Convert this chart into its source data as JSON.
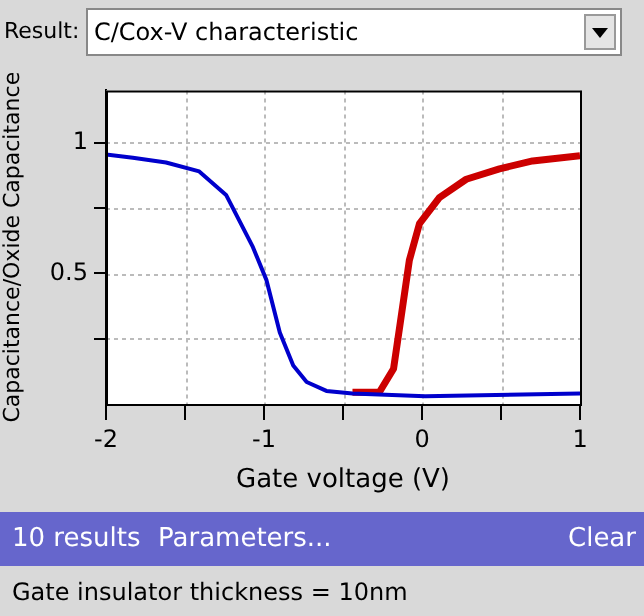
{
  "chart_data": {
    "type": "line",
    "title": "C/Cox-V characteristic",
    "xlabel": "Gate voltage (V)",
    "ylabel": "Capacitance/Oxide Capacitance",
    "annotations": [
      "Result:",
      "10 results",
      "Parameters...",
      "Clear",
      "Gate insulator thickness = 10nm"
    ],
    "series": [
      {
        "color": "#cc0000",
        "x": [
          -0.44,
          -0.27,
          -0.18,
          -0.14,
          -0.08,
          -0.016,
          0.11,
          0.28,
          0.49,
          0.7,
          1
        ],
        "values": [
          0.045,
          0.045,
          0.135,
          0.3,
          0.55,
          0.69,
          0.79,
          0.86,
          0.9,
          0.93,
          0.95
        ]
      },
      {
        "color": "#0000cc",
        "x": [
          -2,
          -1.83,
          -1.62,
          -1.41,
          -1.24,
          -1.07,
          -0.985,
          -0.9,
          -0.815,
          -0.73,
          -0.605,
          -0.44,
          0.02,
          1
        ],
        "values": [
          0.955,
          0.942,
          0.924,
          0.89,
          0.8,
          0.6,
          0.475,
          0.274,
          0.147,
          0.084,
          0.05,
          0.04,
          0.03,
          0.04
        ]
      }
    ],
    "xlim": [
      -2,
      1
    ],
    "xticks": [
      -2,
      {
        "value": -1.5,
        "label": null
      },
      -1,
      {
        "value": -0.5,
        "label": null
      },
      0,
      {
        "value": 0.5,
        "label": null
      },
      1
    ],
    "ylim": [
      0,
      1.2
    ],
    "yticks": [
      {
        "value": 0.25,
        "label": null
      },
      0.5,
      {
        "value": 0.75,
        "label": null
      },
      1
    ],
    "grid": true,
    "legend": false,
    "marker": "none",
    "line_style": "solid"
  }
}
